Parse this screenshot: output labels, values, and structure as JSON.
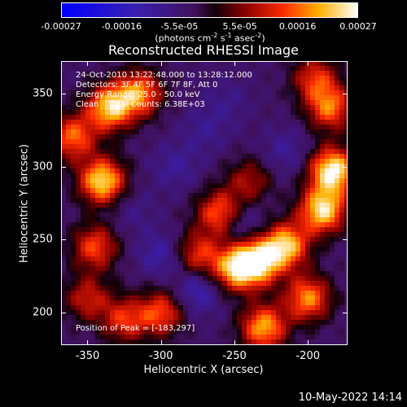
{
  "chart_data": {
    "type": "heatmap",
    "title": "Reconstructed RHESSI Image",
    "xlabel": "Heliocentric X (arcsec)",
    "ylabel": "Heliocentric Y (arcsec)",
    "xlim": [
      -368,
      -173
    ],
    "ylim": [
      178,
      372
    ],
    "x_ticks": [
      "-350",
      "-300",
      "-250",
      "-200"
    ],
    "x_tick_values": [
      -350,
      -300,
      -250,
      -200
    ],
    "y_ticks": [
      "200",
      "250",
      "300",
      "350"
    ],
    "y_tick_values": [
      200,
      250,
      300,
      350
    ],
    "colorbar": {
      "ticks": [
        "-0.00027",
        "-0.00016",
        "-5.5e-05",
        "5.5e-05",
        "0.00016",
        "0.00027"
      ],
      "tick_values": [
        -0.00027,
        -0.00016,
        -5.5e-05,
        5.5e-05,
        0.00016,
        0.00027
      ],
      "range": [
        -0.00027,
        0.00027
      ],
      "unit_main": "(photons cm",
      "unit_sup1": "-2",
      "unit_mid": " s",
      "unit_sup2": "-1",
      "unit_end": " asec",
      "unit_sup3": "-2",
      "unit_close": ")"
    },
    "annotations": [
      "24-Oct-2010 13:22:48.000 to 13:28:12.000",
      "Detectors: 3F 4F 5F 6F 7F 8F, Att 0",
      "Energy Range: 25.0 - 50.0 keV",
      "Clean    Total Counts: 6.38E+03"
    ],
    "peak_label": "Position of Peak = [-183,297]",
    "hot_regions": [
      {
        "x": -183,
        "y": 297,
        "value": 0.00027
      },
      {
        "x": -190,
        "y": 270,
        "value": 0.00024
      },
      {
        "x": -215,
        "y": 246,
        "value": 0.00022
      },
      {
        "x": -235,
        "y": 235,
        "value": 0.00026
      },
      {
        "x": -250,
        "y": 230,
        "value": 0.00018
      },
      {
        "x": -275,
        "y": 240,
        "value": 0.00012
      },
      {
        "x": -260,
        "y": 268,
        "value": 0.00016
      },
      {
        "x": -340,
        "y": 290,
        "value": 0.00024
      },
      {
        "x": -335,
        "y": 340,
        "value": 0.00022
      },
      {
        "x": -315,
        "y": 350,
        "value": 0.00018
      },
      {
        "x": -360,
        "y": 320,
        "value": 0.00016
      },
      {
        "x": -345,
        "y": 245,
        "value": 0.00014
      },
      {
        "x": -300,
        "y": 200,
        "value": 0.00014
      },
      {
        "x": -325,
        "y": 195,
        "value": 0.00012
      },
      {
        "x": -230,
        "y": 190,
        "value": 0.0002
      },
      {
        "x": -200,
        "y": 210,
        "value": 0.00018
      },
      {
        "x": -185,
        "y": 340,
        "value": 0.00016
      },
      {
        "x": -195,
        "y": 360,
        "value": 0.00012
      },
      {
        "x": -350,
        "y": 210,
        "value": 0.0001
      },
      {
        "x": -240,
        "y": 290,
        "value": 8e-05
      }
    ],
    "cold_regions": [
      {
        "x": -300,
        "y": 240,
        "value": -0.00012
      },
      {
        "x": -275,
        "y": 215,
        "value": -0.00014
      },
      {
        "x": -245,
        "y": 260,
        "value": -0.00012
      },
      {
        "x": -215,
        "y": 310,
        "value": -0.0001
      },
      {
        "x": -290,
        "y": 300,
        "value": -0.0001
      },
      {
        "x": -255,
        "y": 345,
        "value": -8e-05
      },
      {
        "x": -320,
        "y": 270,
        "value": -8e-05
      },
      {
        "x": -270,
        "y": 325,
        "value": -9e-05
      }
    ]
  },
  "footer": "10-May-2022 14:14"
}
